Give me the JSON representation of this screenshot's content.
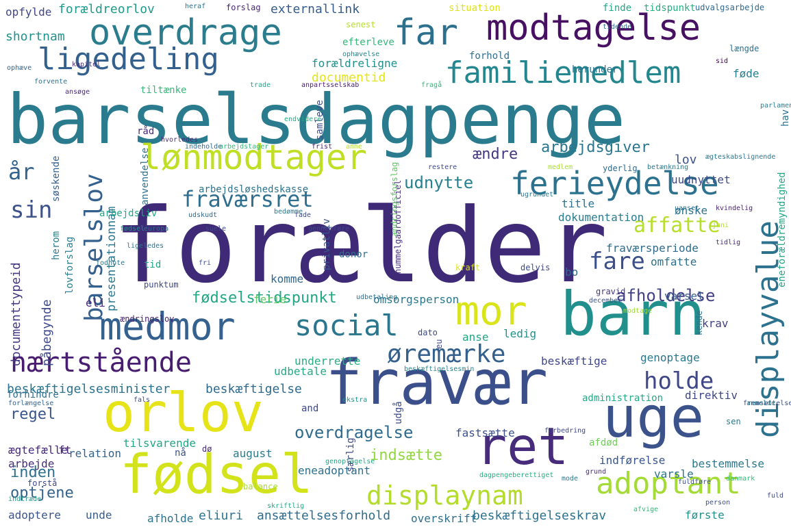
{
  "words": [
    "forælder",
    "barselsdagpenge",
    "fravær",
    "barn",
    "uge",
    "orlov",
    "fødsel",
    "ret",
    "mor",
    "medmor",
    "modtagelse",
    "overdrage",
    "far",
    "lønmodtager",
    "ferieydelse",
    "familiemedlem",
    "ligedeling",
    "adoptant",
    "nærtstående",
    "social",
    "displayvalue",
    "displaynam",
    "barselslov",
    "øremærke",
    "fraværsret",
    "holde",
    "fare",
    "sin",
    "år",
    "affatte",
    "afholdelse",
    "overdragelse",
    "udnytte",
    "arbejdsgiver",
    "ændre",
    "fødselstidspunkt",
    "regel",
    "inden",
    "optjene",
    "indsætte",
    "documenttypeid",
    "påbegynde",
    "presentationnam",
    "lov",
    "title",
    "dokumentation",
    "fraværsperiode",
    "omfatte",
    "varsel",
    "ønske",
    "uudnyttet",
    "eneforældremyndighed",
    "beskæftigelsesminister",
    "beskæftigelse",
    "beskæftigelseskrav",
    "ansættelsesforhold",
    "overskrift",
    "første",
    "eliuri",
    "afholde",
    "unde",
    "adoptere",
    "arbejde",
    "ægtefælle",
    "relation",
    "tilsvarende",
    "august",
    "eneadoptant",
    "indførelse",
    "bestemmelse",
    "varsle",
    "fastsætte",
    "afdød",
    "direktiv",
    "administration",
    "genoptage",
    "beskæftige",
    "underrette",
    "udbetale",
    "anse",
    "ledig",
    "krav",
    "omsorgsperson",
    "komme",
    "bo",
    "ferie",
    "eli",
    "punktum",
    "tid",
    "lovforslag",
    "ændringslov",
    "herom",
    "anvendelse",
    "søskende",
    "arbejdsliv",
    "arbejdsløshedskasse",
    "donor",
    "privatliv",
    "samleve",
    "tiltænke",
    "råd",
    "documentid",
    "forældreligne",
    "forældreorlov",
    "externallink",
    "shortnam",
    "opfylde",
    "forslag",
    "efterleve",
    "senest",
    "situation",
    "finde",
    "tidspunkt",
    "udvalgsarbejde",
    "forhold",
    "herunder",
    "længde",
    "føde",
    "hav",
    "yderlig",
    "forhindre",
    "ft",
    "nå",
    "dø",
    "forstå",
    "balance",
    "særlig",
    "udgå",
    "sen",
    "and",
    "hummelgaardofficiel",
    "delvis",
    "kraft",
    "december",
    "gravid",
    "dato",
    "kende",
    "eu",
    "ændringsforslag",
    "kvindelig",
    "uanset",
    "juni",
    "fremsættelse",
    "ægteskabslignende",
    "ugrundet",
    "medlem",
    "betænkning",
    "restere",
    "amme",
    "frist",
    "arbejdstager",
    "indeholde",
    "parlament",
    "hvorledes",
    "endvidere",
    "kapitel",
    "anpartsselskab",
    "trade",
    "fragå",
    "ophæve",
    "forvente",
    "ansøge",
    "heraf",
    "tidende",
    "ophævelse",
    "sid",
    "forbedring",
    "mode",
    "grund",
    "modtage",
    "afvige",
    "person",
    "anmelde",
    "danmark",
    "fuld",
    "ekstra",
    "genoptagelse",
    "beskæftigelsesmin",
    "dagpengeberettiget",
    "skriftlig",
    "indtræde",
    "forlængelse",
    "fals",
    "europa",
    "suele",
    "gennemføre",
    "fade",
    "bedømme",
    "udskudt",
    "fødsel",
    "ligeledes",
    "fodnote",
    "fri",
    "tidlig",
    "udbetaling",
    "fuldføre"
  ]
}
